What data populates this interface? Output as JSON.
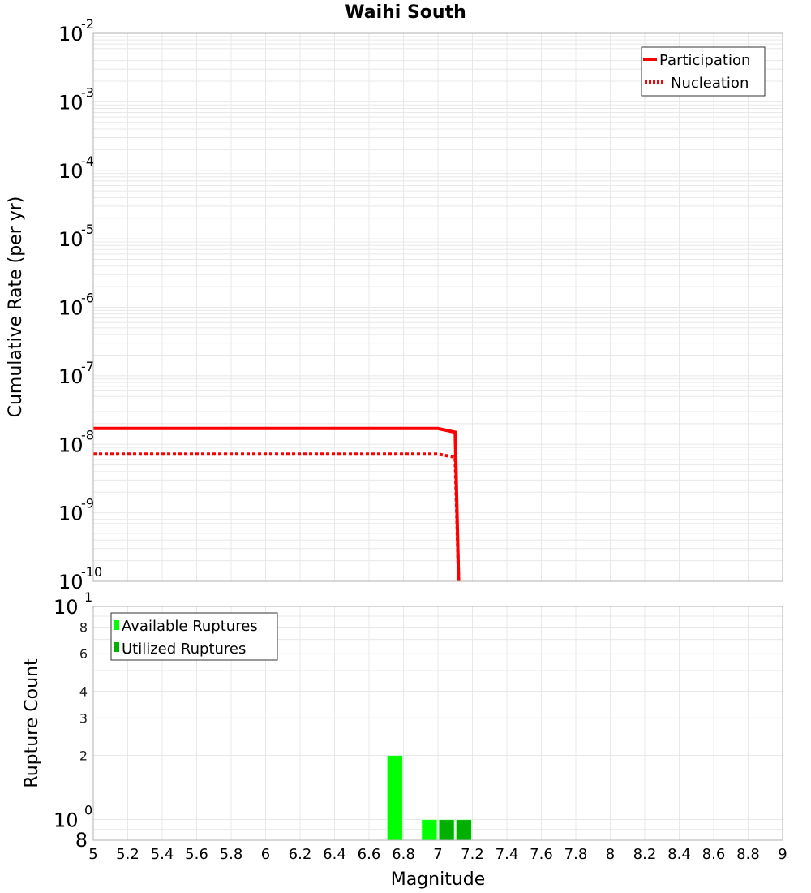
{
  "chart_data": [
    {
      "type": "line",
      "title": "Waihi South",
      "xlabel": "Magnitude",
      "ylabel": "Cumulative Rate (per yr)",
      "yscale": "log",
      "xlim": [
        5,
        9
      ],
      "ylim": [
        1e-10,
        0.01
      ],
      "grid": true,
      "legend_position": "top-right",
      "y_tick_exponents": [
        -2,
        -3,
        -4,
        -5,
        -6,
        -7,
        -8,
        -9,
        -10
      ],
      "series": [
        {
          "name": "Participation",
          "style": "solid",
          "color": "#ff0000",
          "x": [
            5.0,
            5.1,
            5.2,
            5.3,
            5.4,
            5.5,
            5.6,
            5.7,
            5.8,
            5.9,
            6.0,
            6.1,
            6.2,
            6.3,
            6.4,
            6.5,
            6.6,
            6.7,
            6.8,
            6.9,
            7.0,
            7.1,
            7.12
          ],
          "y": [
            1.7e-08,
            1.7e-08,
            1.7e-08,
            1.7e-08,
            1.7e-08,
            1.7e-08,
            1.7e-08,
            1.7e-08,
            1.7e-08,
            1.7e-08,
            1.7e-08,
            1.7e-08,
            1.7e-08,
            1.7e-08,
            1.7e-08,
            1.7e-08,
            1.7e-08,
            1.7e-08,
            1.7e-08,
            1.7e-08,
            1.7e-08,
            1.5e-08,
            1e-10
          ]
        },
        {
          "name": "Nucleation",
          "style": "dotted",
          "color": "#ff0000",
          "x": [
            5.0,
            5.1,
            5.2,
            5.3,
            5.4,
            5.5,
            5.6,
            5.7,
            5.8,
            5.9,
            6.0,
            6.1,
            6.2,
            6.3,
            6.4,
            6.5,
            6.6,
            6.7,
            6.8,
            6.9,
            7.0,
            7.1,
            7.12
          ],
          "y": [
            7.2e-09,
            7.2e-09,
            7.2e-09,
            7.2e-09,
            7.2e-09,
            7.2e-09,
            7.2e-09,
            7.2e-09,
            7.2e-09,
            7.2e-09,
            7.2e-09,
            7.2e-09,
            7.2e-09,
            7.2e-09,
            7.2e-09,
            7.2e-09,
            7.2e-09,
            7.2e-09,
            7.2e-09,
            7.2e-09,
            7.2e-09,
            6.5e-09,
            1e-10
          ]
        }
      ]
    },
    {
      "type": "bar",
      "title": "",
      "xlabel": "Magnitude",
      "ylabel": "Rupture Count",
      "yscale": "log",
      "xlim": [
        5,
        9
      ],
      "ylim": [
        0.8,
        10
      ],
      "grid": true,
      "legend_position": "top-left",
      "x_ticks": [
        "5",
        "5.2",
        "5.4",
        "5.6",
        "5.8",
        "6",
        "6.2",
        "6.4",
        "6.6",
        "6.8",
        "7",
        "7.2",
        "7.4",
        "7.6",
        "7.8",
        "8",
        "8.2",
        "8.4",
        "8.6",
        "8.8",
        "9"
      ],
      "y_tick_labels": [
        "8",
        "10^0",
        "2",
        "3",
        "4",
        "6",
        "8",
        "10^1"
      ],
      "bar_width": 0.09,
      "series": [
        {
          "name": "Available Ruptures",
          "color": "#00ff00",
          "x": [
            6.75,
            6.95
          ],
          "values": [
            2,
            1
          ]
        },
        {
          "name": "Utilized Ruptures",
          "color": "#00b000",
          "x": [
            7.05,
            7.15
          ],
          "values": [
            1,
            1
          ]
        }
      ]
    }
  ],
  "labels": {
    "title": "Waihi South",
    "top_ylabel": "Cumulative Rate (per yr)",
    "bottom_ylabel": "Rupture Count",
    "xlabel": "Magnitude",
    "legend_top": [
      "Participation",
      "Nucleation"
    ],
    "legend_bottom": [
      "Available Ruptures",
      "Utilized Ruptures"
    ]
  }
}
